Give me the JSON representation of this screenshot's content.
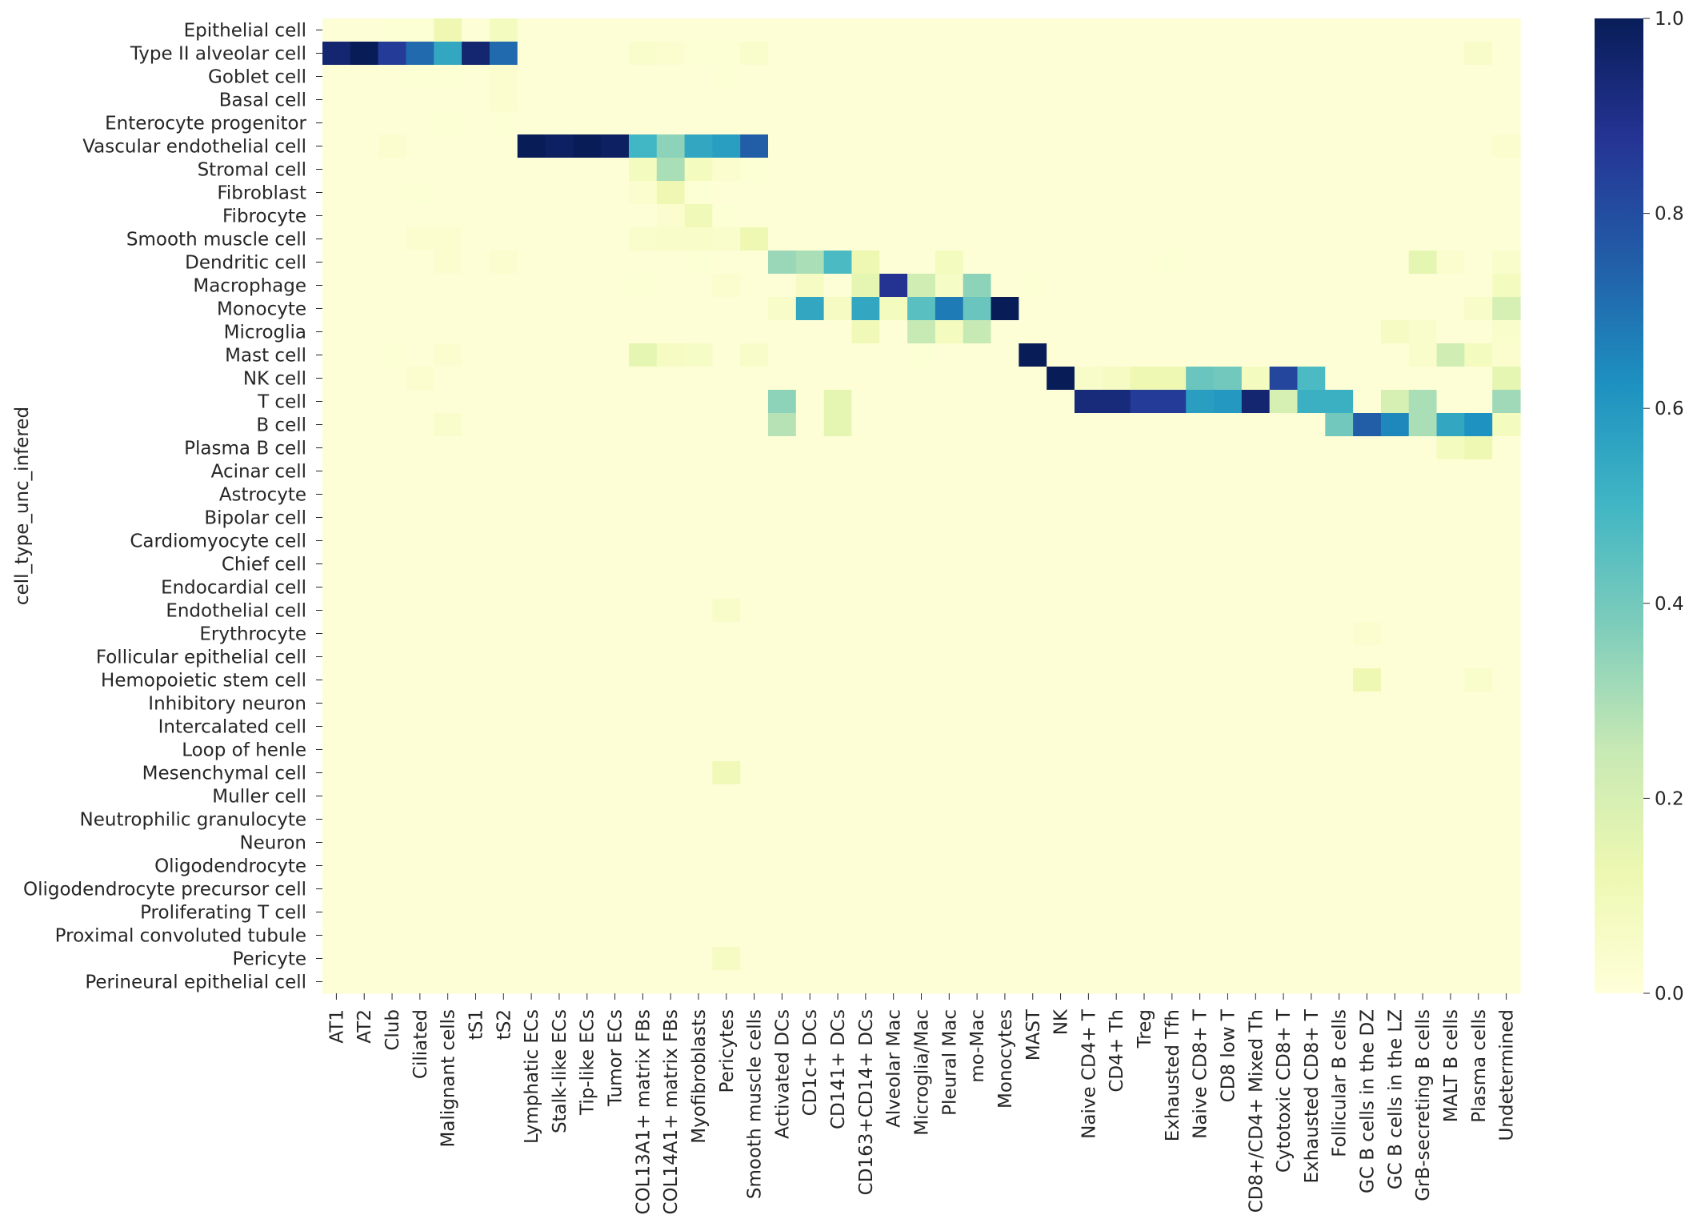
{
  "chart_data": {
    "type": "heatmap",
    "ylabel": "cell_type_unc_infered",
    "xlabel": "",
    "colormap": "YlGnBu",
    "colorbar": {
      "min": 0.0,
      "max": 1.0,
      "ticks": [
        "0.0",
        "0.2",
        "0.4",
        "0.6",
        "0.8",
        "1.0"
      ]
    },
    "rows": [
      "Epithelial cell",
      "Type II alveolar cell",
      "Goblet cell",
      "Basal cell",
      "Enterocyte progenitor",
      "Vascular endothelial cell",
      "Stromal cell",
      "Fibroblast",
      "Fibrocyte",
      "Smooth muscle cell",
      "Dendritic cell",
      "Macrophage",
      "Monocyte",
      "Microglia",
      "Mast cell",
      "NK cell",
      "T cell",
      "B cell",
      "Plasma B cell",
      "Acinar cell",
      "Astrocyte",
      "Bipolar cell",
      "Cardiomyocyte cell",
      "Chief cell",
      "Endocardial cell",
      "Endothelial cell",
      "Erythrocyte",
      "Follicular epithelial cell",
      "Hemopoietic stem cell",
      "Inhibitory neuron",
      "Intercalated cell",
      "Loop of henle",
      "Mesenchymal cell",
      "Muller cell",
      "Neutrophilic granulocyte",
      "Neuron",
      "Oligodendrocyte",
      "Oligodendrocyte precursor cell",
      "Proliferating T cell",
      "Proximal convoluted tubule",
      "Pericyte",
      "Perineural epithelial cell"
    ],
    "columns": [
      "AT1",
      "AT2",
      "Club",
      "Ciliated",
      "Malignant cells",
      "tS1",
      "tS2",
      "Lymphatic ECs",
      "Stalk-like ECs",
      "Tip-like ECs",
      "Tumor ECs",
      "COL13A1+ matrix FBs",
      "COL14A1+ matrix FBs",
      "Myofibroblasts",
      "Pericytes",
      "Smooth muscle cells",
      "Activated DCs",
      "CD1c+ DCs",
      "CD141+ DCs",
      "CD163+CD14+ DCs",
      "Alveolar Mac",
      "Microglia/Mac",
      "Pleural Mac",
      "mo-Mac",
      "Monocytes",
      "MAST",
      "NK",
      "Naive CD4+ T",
      "CD4+ Th",
      "Treg",
      "Exhausted Tfh",
      "Naive CD8+ T",
      "CD8 low T",
      "CD8+/CD4+ Mixed Th",
      "Cytotoxic CD8+ T",
      "Exhausted CD8+ T",
      "Follicular B cells",
      "GC B cells in the DZ",
      "GC B cells in the LZ",
      "GrB-secreting B cells",
      "MALT B cells",
      "Plasma cells",
      "Undetermined"
    ],
    "cells": [
      [
        0,
        2,
        0.02
      ],
      [
        0,
        3,
        0.02
      ],
      [
        0,
        4,
        0.12
      ],
      [
        0,
        6,
        0.08
      ],
      [
        1,
        0,
        0.95
      ],
      [
        1,
        1,
        1.0
      ],
      [
        1,
        2,
        0.85
      ],
      [
        1,
        3,
        0.72
      ],
      [
        1,
        4,
        0.55
      ],
      [
        1,
        5,
        0.95
      ],
      [
        1,
        6,
        0.72
      ],
      [
        1,
        11,
        0.04
      ],
      [
        1,
        12,
        0.03
      ],
      [
        1,
        13,
        0.02
      ],
      [
        1,
        14,
        0.02
      ],
      [
        1,
        15,
        0.04
      ],
      [
        1,
        41,
        0.05
      ],
      [
        2,
        3,
        0.02
      ],
      [
        2,
        4,
        0.02
      ],
      [
        2,
        6,
        0.03
      ],
      [
        2,
        14,
        0.02
      ],
      [
        3,
        6,
        0.03
      ],
      [
        4,
        4,
        0.02
      ],
      [
        4,
        6,
        0.02
      ],
      [
        5,
        2,
        0.03
      ],
      [
        5,
        7,
        1.0
      ],
      [
        5,
        8,
        0.98
      ],
      [
        5,
        9,
        1.0
      ],
      [
        5,
        10,
        0.98
      ],
      [
        5,
        11,
        0.5
      ],
      [
        5,
        12,
        0.35
      ],
      [
        5,
        13,
        0.55
      ],
      [
        5,
        14,
        0.58
      ],
      [
        5,
        15,
        0.75
      ],
      [
        5,
        42,
        0.03
      ],
      [
        6,
        11,
        0.08
      ],
      [
        6,
        12,
        0.3
      ],
      [
        6,
        13,
        0.08
      ],
      [
        6,
        14,
        0.03
      ],
      [
        6,
        15,
        0.02
      ],
      [
        7,
        3,
        0.02
      ],
      [
        7,
        11,
        0.03
      ],
      [
        7,
        12,
        0.12
      ],
      [
        7,
        13,
        0.02
      ],
      [
        8,
        12,
        0.03
      ],
      [
        8,
        13,
        0.1
      ],
      [
        8,
        14,
        0.02
      ],
      [
        9,
        3,
        0.03
      ],
      [
        9,
        4,
        0.03
      ],
      [
        9,
        11,
        0.04
      ],
      [
        9,
        12,
        0.05
      ],
      [
        9,
        13,
        0.05
      ],
      [
        9,
        14,
        0.04
      ],
      [
        9,
        15,
        0.12
      ],
      [
        10,
        4,
        0.03
      ],
      [
        10,
        6,
        0.03
      ],
      [
        10,
        13,
        0.02
      ],
      [
        10,
        16,
        0.33
      ],
      [
        10,
        17,
        0.3
      ],
      [
        10,
        18,
        0.48
      ],
      [
        10,
        19,
        0.12
      ],
      [
        10,
        22,
        0.08
      ],
      [
        10,
        30,
        0.02
      ],
      [
        10,
        39,
        0.15
      ],
      [
        10,
        40,
        0.03
      ],
      [
        10,
        42,
        0.04
      ],
      [
        11,
        11,
        0.02
      ],
      [
        11,
        14,
        0.03
      ],
      [
        11,
        17,
        0.07
      ],
      [
        11,
        19,
        0.15
      ],
      [
        11,
        20,
        0.88
      ],
      [
        11,
        21,
        0.22
      ],
      [
        11,
        22,
        0.06
      ],
      [
        11,
        23,
        0.35
      ],
      [
        11,
        25,
        0.02
      ],
      [
        11,
        42,
        0.08
      ],
      [
        12,
        16,
        0.05
      ],
      [
        12,
        17,
        0.55
      ],
      [
        12,
        18,
        0.07
      ],
      [
        12,
        19,
        0.55
      ],
      [
        12,
        20,
        0.08
      ],
      [
        12,
        21,
        0.45
      ],
      [
        12,
        22,
        0.68
      ],
      [
        12,
        23,
        0.42
      ],
      [
        12,
        24,
        1.0
      ],
      [
        12,
        41,
        0.05
      ],
      [
        12,
        42,
        0.2
      ],
      [
        13,
        19,
        0.1
      ],
      [
        13,
        21,
        0.25
      ],
      [
        13,
        22,
        0.08
      ],
      [
        13,
        23,
        0.25
      ],
      [
        13,
        38,
        0.07
      ],
      [
        13,
        39,
        0.04
      ],
      [
        13,
        42,
        0.04
      ],
      [
        14,
        2,
        0.02
      ],
      [
        14,
        4,
        0.03
      ],
      [
        14,
        11,
        0.15
      ],
      [
        14,
        12,
        0.07
      ],
      [
        14,
        13,
        0.06
      ],
      [
        14,
        15,
        0.05
      ],
      [
        14,
        21,
        0.02
      ],
      [
        14,
        25,
        1.0
      ],
      [
        14,
        39,
        0.04
      ],
      [
        14,
        40,
        0.22
      ],
      [
        14,
        41,
        0.08
      ],
      [
        14,
        42,
        0.03
      ],
      [
        15,
        3,
        0.03
      ],
      [
        15,
        26,
        1.0
      ],
      [
        15,
        27,
        0.05
      ],
      [
        15,
        28,
        0.07
      ],
      [
        15,
        29,
        0.12
      ],
      [
        15,
        30,
        0.12
      ],
      [
        15,
        31,
        0.42
      ],
      [
        15,
        32,
        0.4
      ],
      [
        15,
        33,
        0.08
      ],
      [
        15,
        34,
        0.82
      ],
      [
        15,
        35,
        0.48
      ],
      [
        15,
        42,
        0.15
      ],
      [
        16,
        16,
        0.35
      ],
      [
        16,
        18,
        0.15
      ],
      [
        16,
        27,
        0.93
      ],
      [
        16,
        28,
        0.93
      ],
      [
        16,
        29,
        0.85
      ],
      [
        16,
        30,
        0.85
      ],
      [
        16,
        31,
        0.58
      ],
      [
        16,
        32,
        0.6
      ],
      [
        16,
        33,
        0.95
      ],
      [
        16,
        34,
        0.2
      ],
      [
        16,
        35,
        0.52
      ],
      [
        16,
        36,
        0.52
      ],
      [
        16,
        38,
        0.2
      ],
      [
        16,
        39,
        0.3
      ],
      [
        16,
        42,
        0.32
      ],
      [
        17,
        4,
        0.04
      ],
      [
        17,
        16,
        0.28
      ],
      [
        17,
        18,
        0.15
      ],
      [
        17,
        36,
        0.4
      ],
      [
        17,
        37,
        0.75
      ],
      [
        17,
        38,
        0.65
      ],
      [
        17,
        39,
        0.3
      ],
      [
        17,
        40,
        0.55
      ],
      [
        17,
        41,
        0.62
      ],
      [
        17,
        42,
        0.08
      ],
      [
        18,
        40,
        0.08
      ],
      [
        18,
        41,
        0.12
      ],
      [
        25,
        14,
        0.05
      ],
      [
        26,
        37,
        0.03
      ],
      [
        28,
        37,
        0.12
      ],
      [
        28,
        41,
        0.04
      ],
      [
        32,
        14,
        0.1
      ],
      [
        40,
        14,
        0.07
      ]
    ],
    "base_value": 0.01
  }
}
